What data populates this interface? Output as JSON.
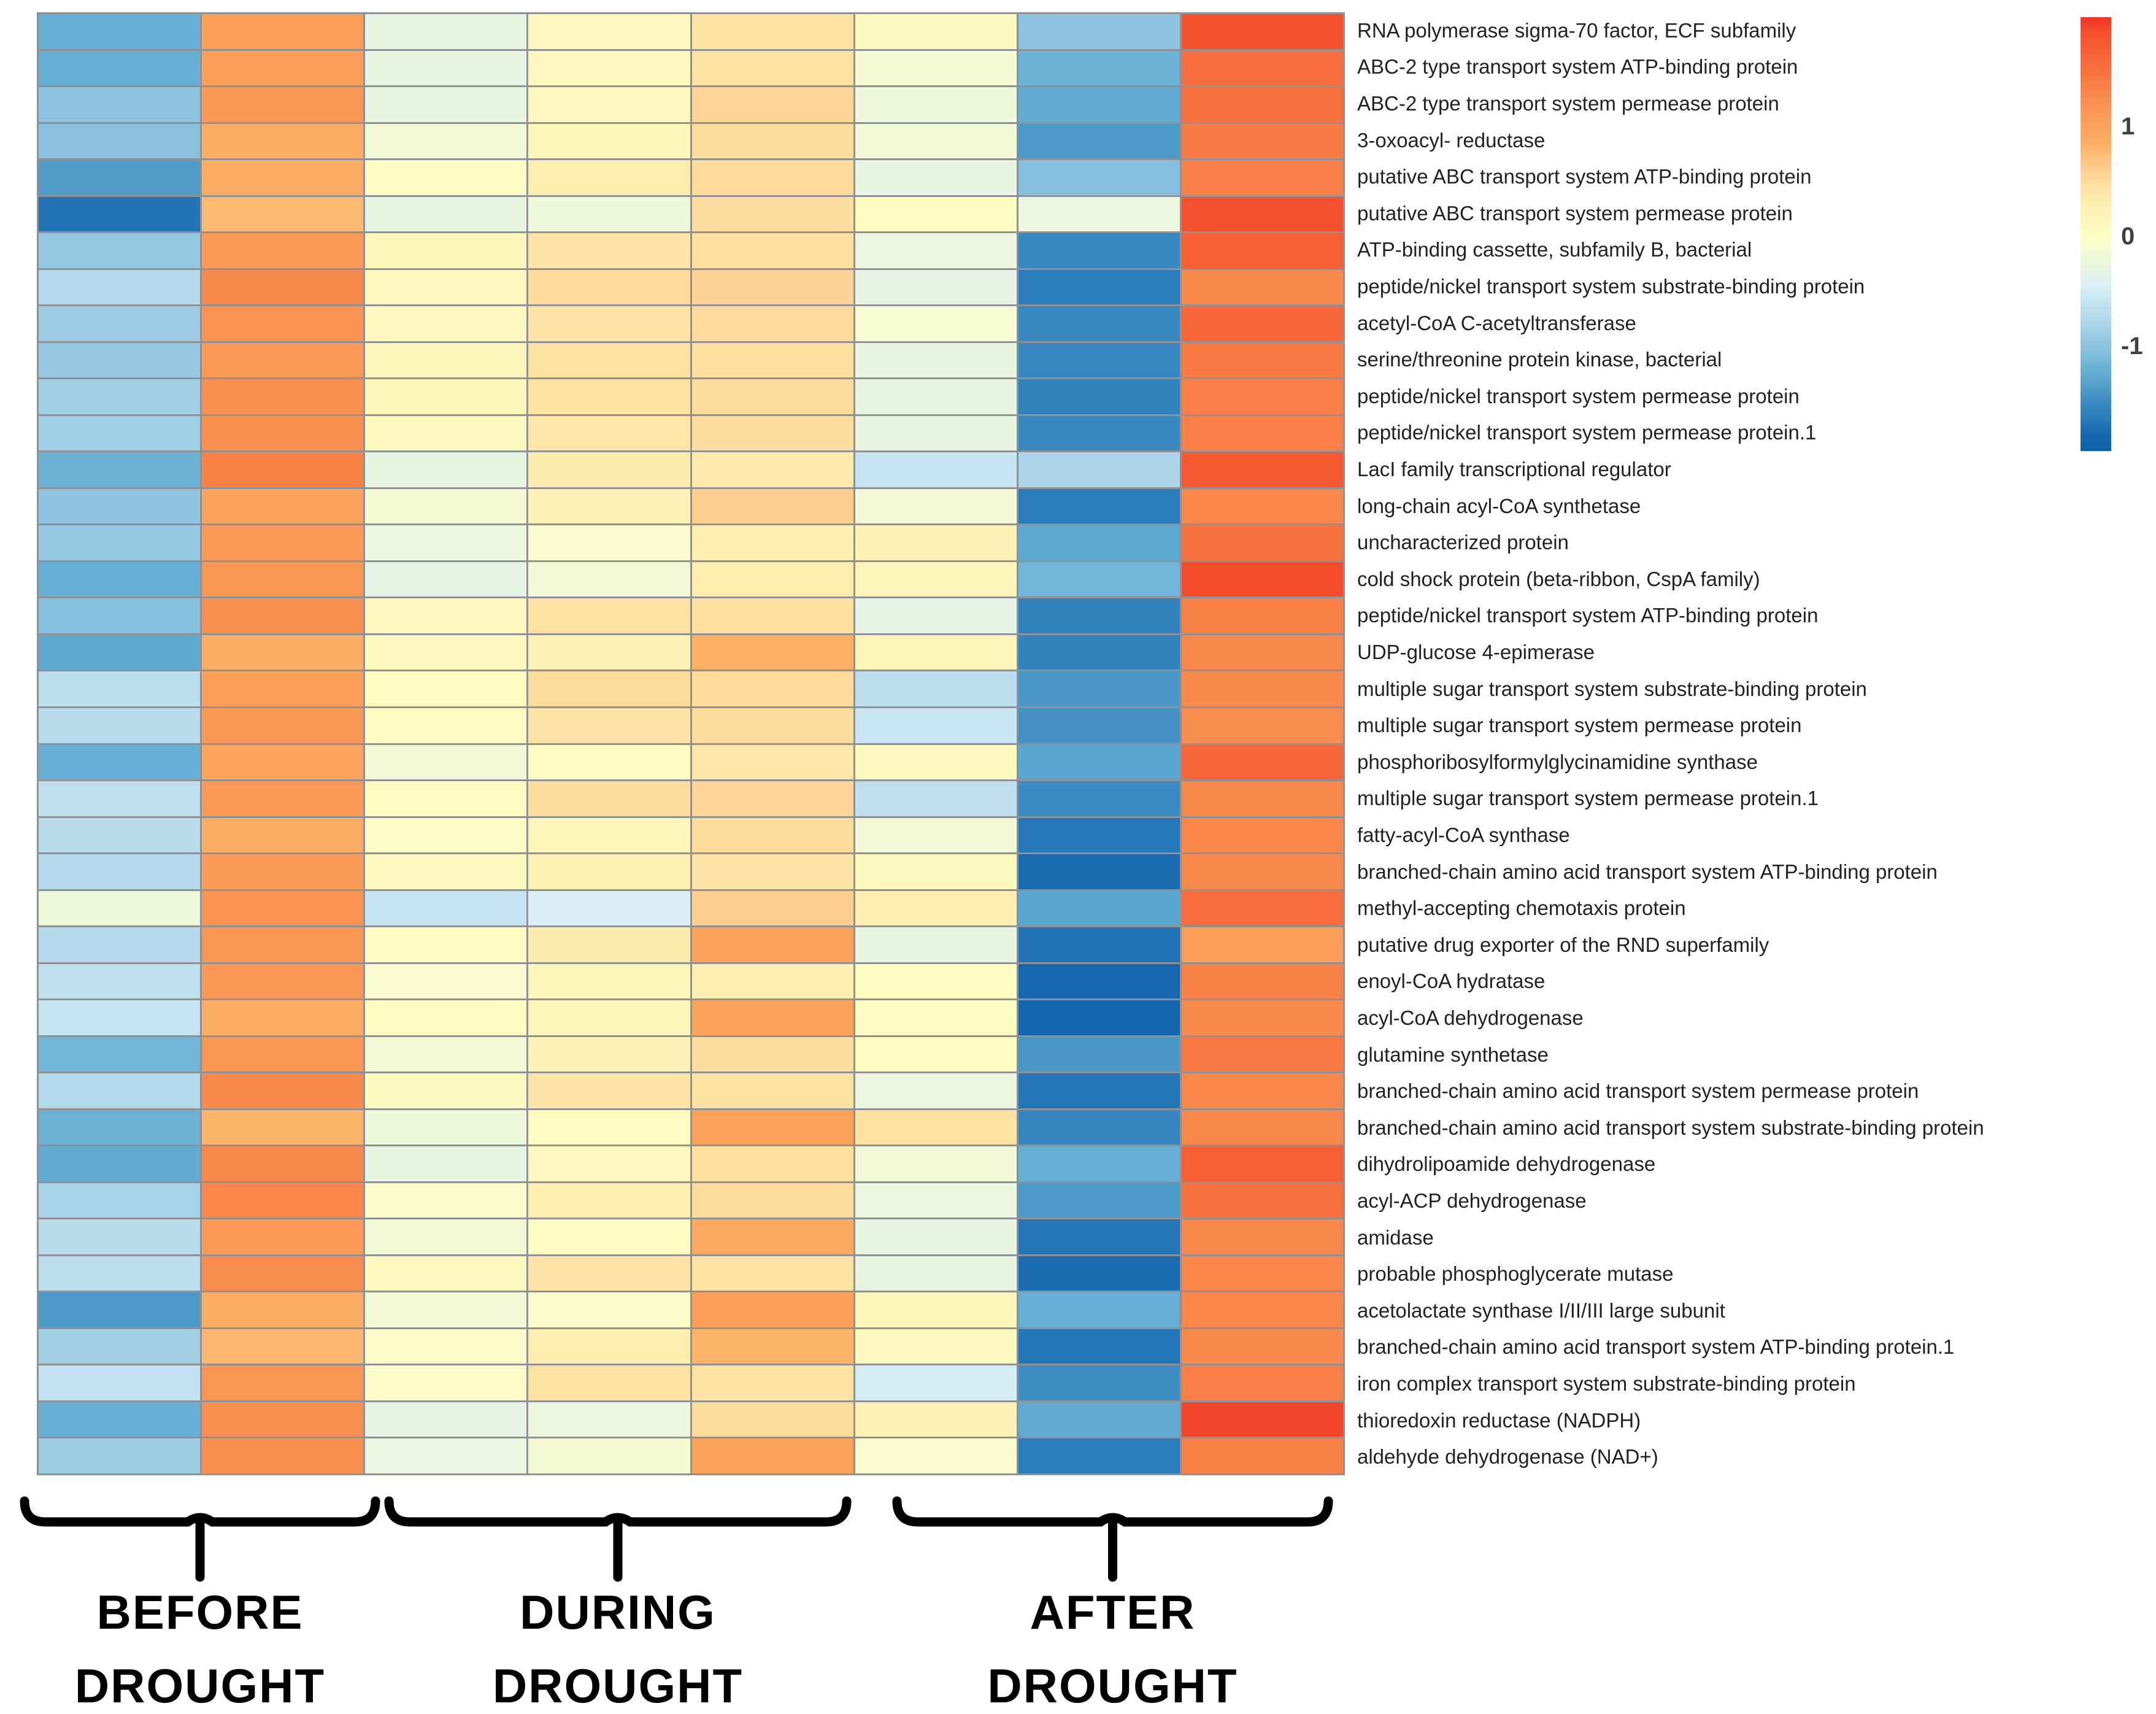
{
  "chart_data": {
    "type": "heatmap",
    "n_columns": 8,
    "column_groups": [
      {
        "label": "BEFORE DROUGHT",
        "line1": "BEFORE",
        "line2": "DROUGHT",
        "n_columns": 2
      },
      {
        "label": "DURING DROUGHT",
        "line1": "DURING",
        "line2": "DROUGHT",
        "n_columns": 3
      },
      {
        "label": "AFTER DROUGHT",
        "line1": "AFTER",
        "line2": "DROUGHT",
        "n_columns": 3
      }
    ],
    "legend_position": "right",
    "grid_line_color": "#8f9194",
    "colorbar": {
      "tick_labels": [
        "1",
        "0",
        "-1"
      ],
      "tick_values": [
        1,
        0,
        -1
      ],
      "domain": [
        -1.95,
        2.0
      ],
      "gradient_stops": [
        {
          "v": 2.0,
          "c": "#ee3424"
        },
        {
          "v": 1.85,
          "c": "#f6512e"
        },
        {
          "v": 1.7,
          "c": "#f75f35"
        },
        {
          "v": 1.5,
          "c": "#f7713f"
        },
        {
          "v": 1.3,
          "c": "#f9884c"
        },
        {
          "v": 1.1,
          "c": "#fa9a56"
        },
        {
          "v": 1.0,
          "c": "#fba35c"
        },
        {
          "v": 0.85,
          "c": "#fcb066"
        },
        {
          "v": 0.6,
          "c": "#fdd091"
        },
        {
          "v": 0.45,
          "c": "#fee2a4"
        },
        {
          "v": 0.3,
          "c": "#fdeeb0"
        },
        {
          "v": 0.15,
          "c": "#fdf6bb"
        },
        {
          "v": 0.0,
          "c": "#fdfdc3"
        },
        {
          "v": -0.1,
          "c": "#f7fbd2"
        },
        {
          "v": -0.2,
          "c": "#eff7da"
        },
        {
          "v": -0.3,
          "c": "#e8f4e2"
        },
        {
          "v": -0.45,
          "c": "#daeef6"
        },
        {
          "v": -0.6,
          "c": "#c6e3f2"
        },
        {
          "v": -0.75,
          "c": "#b2d8ea"
        },
        {
          "v": -0.9,
          "c": "#9ccbe3"
        },
        {
          "v": -1.05,
          "c": "#84bfdd"
        },
        {
          "v": -1.2,
          "c": "#68b0d5"
        },
        {
          "v": -1.35,
          "c": "#55a2cc"
        },
        {
          "v": -1.5,
          "c": "#3b8ac1"
        },
        {
          "v": -1.65,
          "c": "#2b7cba"
        },
        {
          "v": -1.8,
          "c": "#1768af"
        },
        {
          "v": -1.95,
          "c": "#0d62ab"
        }
      ]
    },
    "rows": [
      {
        "label": "RNA polymerase sigma-70 factor, ECF subfamily",
        "values": [
          -1.22,
          1.05,
          -0.28,
          0.1,
          0.45,
          0.07,
          -1.0,
          1.85
        ]
      },
      {
        "label": "ABC-2 type transport system ATP-binding protein",
        "values": [
          -1.22,
          1.05,
          -0.3,
          0.1,
          0.45,
          -0.12,
          -1.18,
          1.55
        ]
      },
      {
        "label": "ABC-2 type transport system permease protein",
        "values": [
          -1.0,
          1.12,
          -0.28,
          0.1,
          0.55,
          -0.2,
          -1.25,
          1.5
        ]
      },
      {
        "label": "3-oxoacyl- reductase",
        "values": [
          -1.02,
          0.88,
          -0.18,
          0.15,
          0.5,
          -0.15,
          -1.4,
          1.42
        ]
      },
      {
        "label": "putative ABC transport system ATP-binding protein",
        "values": [
          -1.38,
          0.9,
          0.0,
          0.3,
          0.52,
          -0.3,
          -1.05,
          1.38
        ]
      },
      {
        "label": "putative ABC transport system permease protein",
        "values": [
          -1.72,
          0.78,
          -0.3,
          -0.2,
          0.48,
          0.03,
          -0.25,
          1.85
        ]
      },
      {
        "label": "ATP-binding cassette, subfamily B, bacterial",
        "values": [
          -0.95,
          1.1,
          0.15,
          0.42,
          0.47,
          -0.25,
          -1.52,
          1.7
        ]
      },
      {
        "label": "peptide/nickel transport system substrate-binding protein",
        "values": [
          -0.72,
          1.28,
          0.12,
          0.52,
          0.58,
          -0.32,
          -1.65,
          1.28
        ]
      },
      {
        "label": "acetyl-CoA C-acetyltransferase",
        "values": [
          -0.9,
          1.18,
          0.1,
          0.42,
          0.52,
          -0.1,
          -1.52,
          1.62
        ]
      },
      {
        "label": "serine/threonine protein kinase, bacterial",
        "values": [
          -0.92,
          1.1,
          0.18,
          0.45,
          0.47,
          -0.27,
          -1.53,
          1.42
        ]
      },
      {
        "label": "peptide/nickel transport system permease protein",
        "values": [
          -0.85,
          1.22,
          0.15,
          0.45,
          0.5,
          -0.3,
          -1.58,
          1.38
        ]
      },
      {
        "label": "peptide/nickel transport system permease protein.1",
        "values": [
          -0.87,
          1.2,
          0.1,
          0.4,
          0.48,
          -0.28,
          -1.52,
          1.38
        ]
      },
      {
        "label": "LacI family transcriptional regulator",
        "values": [
          -1.18,
          1.35,
          -0.3,
          0.32,
          0.35,
          -0.6,
          -0.8,
          1.78
        ]
      },
      {
        "label": "long-chain acyl-CoA synthetase",
        "values": [
          -0.98,
          1.0,
          -0.12,
          0.2,
          0.62,
          -0.15,
          -1.65,
          1.32
        ]
      },
      {
        "label": "uncharacterized protein",
        "values": [
          -0.95,
          1.1,
          -0.25,
          -0.08,
          0.28,
          0.2,
          -1.28,
          1.48
        ]
      },
      {
        "label": "cold shock protein (beta-ribbon, CspA family)",
        "values": [
          -1.22,
          1.15,
          -0.33,
          -0.15,
          0.3,
          0.18,
          -1.15,
          1.88
        ]
      },
      {
        "label": "peptide/nickel transport system ATP-binding protein",
        "values": [
          -1.05,
          1.22,
          0.12,
          0.45,
          0.47,
          -0.33,
          -1.58,
          1.35
        ]
      },
      {
        "label": "UDP-glucose 4-epimerase",
        "values": [
          -1.28,
          0.88,
          0.08,
          0.22,
          0.85,
          0.18,
          -1.6,
          1.3
        ]
      },
      {
        "label": "multiple sugar transport system substrate-binding protein",
        "values": [
          -0.68,
          1.05,
          0.05,
          0.5,
          0.52,
          -0.68,
          -1.42,
          1.28
        ]
      },
      {
        "label": "multiple sugar transport system permease protein",
        "values": [
          -0.7,
          1.12,
          0.02,
          0.42,
          0.5,
          -0.58,
          -1.45,
          1.25
        ]
      },
      {
        "label": "phosphoribosylformylglycinamidine synthase",
        "values": [
          -1.2,
          0.98,
          -0.15,
          0.05,
          0.4,
          0.08,
          -1.3,
          1.62
        ]
      },
      {
        "label": "multiple sugar transport system permease protein.1",
        "values": [
          -0.65,
          1.1,
          0.05,
          0.48,
          0.55,
          -0.65,
          -1.5,
          1.3
        ]
      },
      {
        "label": "fatty-acyl-CoA synthase",
        "values": [
          -0.7,
          0.88,
          -0.02,
          0.18,
          0.5,
          -0.15,
          -1.68,
          1.32
        ]
      },
      {
        "label": "branched-chain amino acid transport system ATP-binding protein",
        "values": [
          -0.72,
          1.08,
          0.08,
          0.25,
          0.42,
          0.06,
          -1.78,
          1.3
        ]
      },
      {
        "label": "methyl-accepting chemotaxis protein",
        "values": [
          -0.2,
          1.18,
          -0.6,
          -0.45,
          0.6,
          0.28,
          -1.3,
          1.55
        ]
      },
      {
        "label": "putative drug exporter of the RND superfamily",
        "values": [
          -0.72,
          1.15,
          0.04,
          0.32,
          1.0,
          -0.3,
          -1.72,
          1.05
        ]
      },
      {
        "label": "enoyl-CoA hydratase",
        "values": [
          -0.65,
          1.12,
          -0.08,
          0.15,
          0.28,
          0.04,
          -1.82,
          1.35
        ]
      },
      {
        "label": "acyl-CoA dehydrogenase",
        "values": [
          -0.6,
          0.9,
          0.05,
          0.18,
          1.0,
          0.0,
          -1.85,
          1.28
        ]
      },
      {
        "label": "glutamine synthetase",
        "values": [
          -1.15,
          1.15,
          -0.15,
          0.22,
          0.5,
          0.05,
          -1.42,
          1.45
        ]
      },
      {
        "label": "branched-chain amino acid transport system permease protein",
        "values": [
          -0.75,
          1.28,
          0.06,
          0.42,
          0.45,
          -0.25,
          -1.7,
          1.32
        ]
      },
      {
        "label": "branched-chain amino acid transport system substrate-binding protein",
        "values": [
          -1.18,
          0.82,
          -0.2,
          0.05,
          1.02,
          0.45,
          -1.55,
          1.3
        ]
      },
      {
        "label": "dihydrolipoamide dehydrogenase",
        "values": [
          -1.25,
          1.3,
          -0.3,
          0.1,
          0.47,
          -0.18,
          -1.2,
          1.7
        ]
      },
      {
        "label": "acyl-ACP dehydrogenase",
        "values": [
          -0.82,
          1.32,
          -0.05,
          0.28,
          0.5,
          -0.25,
          -1.4,
          1.5
        ]
      },
      {
        "label": "amidase",
        "values": [
          -0.7,
          1.1,
          -0.14,
          0.03,
          0.92,
          -0.27,
          -1.7,
          1.3
        ]
      },
      {
        "label": "probable phosphoglycerate mutase",
        "values": [
          -0.68,
          1.25,
          0.1,
          0.42,
          0.44,
          -0.3,
          -1.78,
          1.32
        ]
      },
      {
        "label": "acetolactate synthase I/II/III large subunit",
        "values": [
          -1.4,
          0.88,
          -0.16,
          -0.05,
          1.05,
          0.15,
          -1.22,
          1.32
        ]
      },
      {
        "label": "branched-chain amino acid transport system ATP-binding protein.1",
        "values": [
          -0.85,
          0.8,
          -0.04,
          0.3,
          0.82,
          0.1,
          -1.7,
          1.28
        ]
      },
      {
        "label": "iron complex transport system substrate-binding protein",
        "values": [
          -0.62,
          1.15,
          -0.03,
          0.45,
          0.45,
          -0.48,
          -1.48,
          1.38
        ]
      },
      {
        "label": "thioredoxin reductase (NADPH)",
        "values": [
          -1.2,
          1.22,
          -0.32,
          -0.25,
          0.5,
          0.22,
          -1.26,
          1.9
        ]
      },
      {
        "label": "aldehyde dehydrogenase (NAD+)",
        "values": [
          -0.88,
          1.2,
          -0.26,
          -0.12,
          1.0,
          -0.07,
          -1.65,
          1.35
        ]
      }
    ]
  }
}
